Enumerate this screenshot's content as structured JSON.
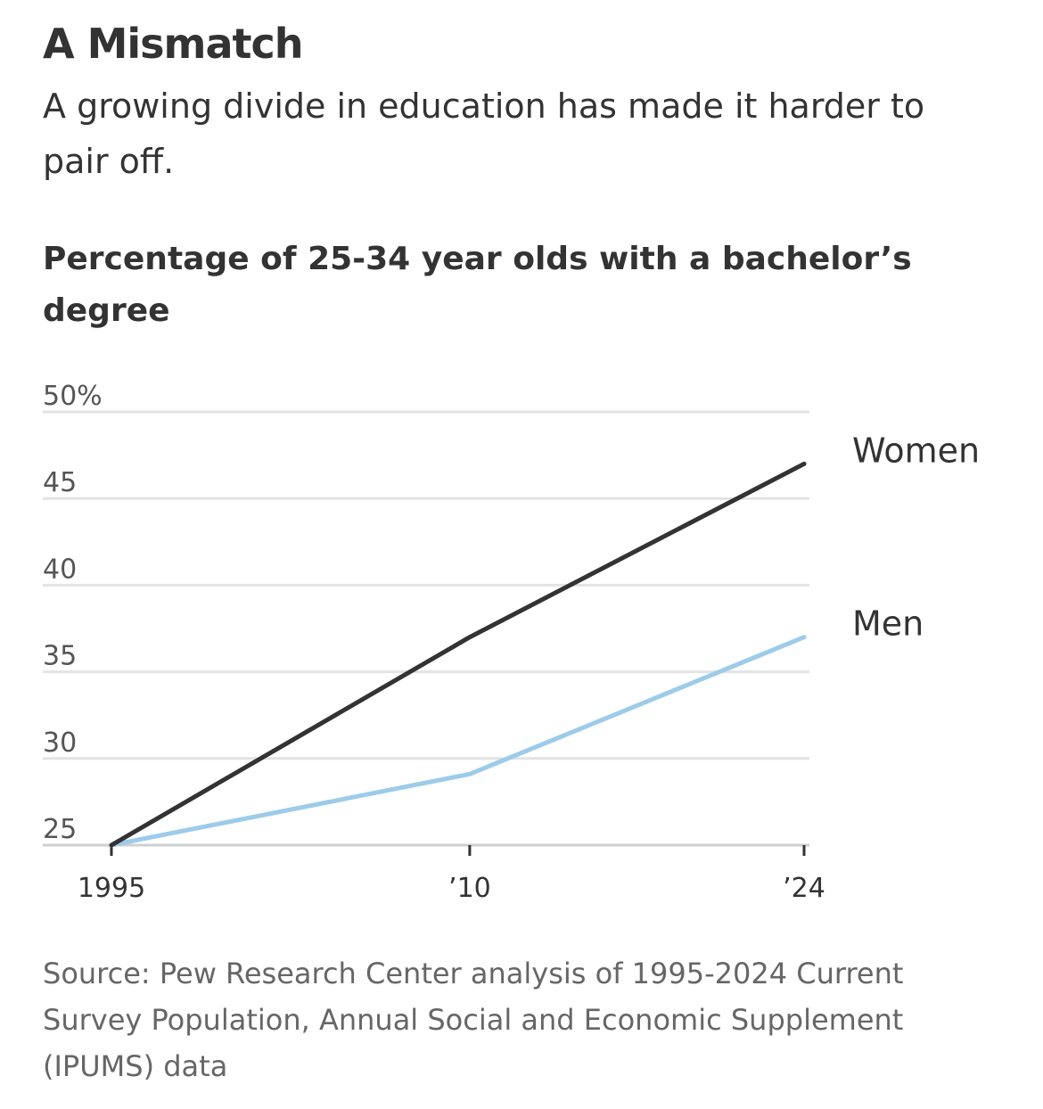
{
  "headline": "A Mismatch",
  "dek": "A growing divide in education has made it harder to pair off.",
  "source": "Source: Pew Research Center analysis of 1995-2024 Current Survey Population, Annual Social and Economic Supplement (IPUMS) data",
  "chart_data": {
    "type": "line",
    "title": "Percentage of 25-34 year olds with a bachelor’s degree",
    "xlabel": "",
    "ylabel": "",
    "x": [
      1995,
      2010,
      2024
    ],
    "x_tick_labels": [
      "1995",
      "’10",
      "’24"
    ],
    "y_ticks": [
      25,
      30,
      35,
      40,
      45,
      50
    ],
    "y_tick_labels": [
      "25",
      "30",
      "35",
      "40",
      "45",
      "50%"
    ],
    "ylim": [
      25,
      50
    ],
    "xlim": [
      1995,
      2024
    ],
    "grid": true,
    "legend": "direct labels at line ends",
    "series": [
      {
        "name": "Women",
        "values": [
          25,
          37,
          47
        ],
        "color": "#333333"
      },
      {
        "name": "Men",
        "values": [
          25,
          29.1,
          37
        ],
        "color": "#9dcbea"
      }
    ]
  }
}
